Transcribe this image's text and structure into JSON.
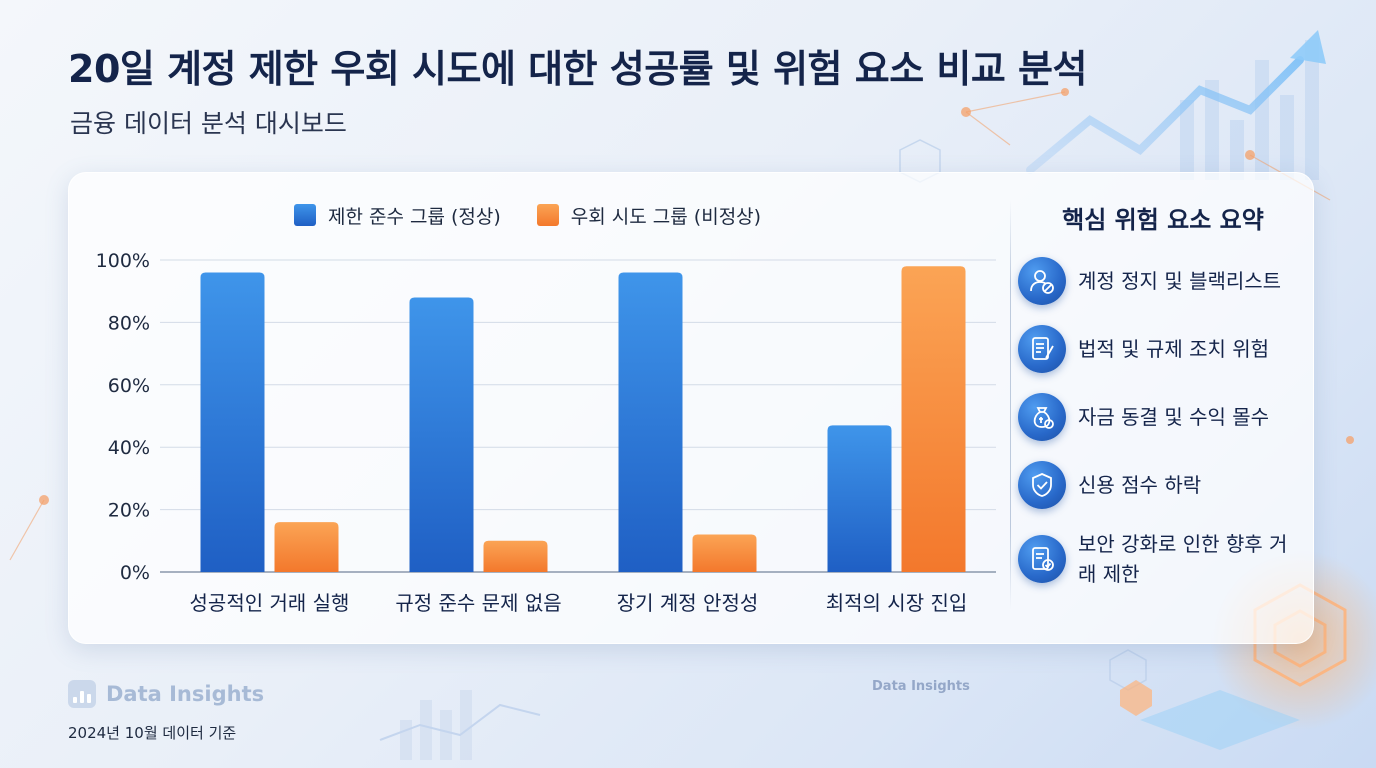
{
  "header": {
    "title": "20일 계정 제한 우회 시도에 대한 성공률 및 위험 요소 비교 분석",
    "subtitle": "금융 데이터 분석 대시보드"
  },
  "chart_data": {
    "type": "bar",
    "categories": [
      "성공적인 거래 실행",
      "규정 준수 문제 없음",
      "장기 계정 안정성",
      "최적의 시장 진입"
    ],
    "series": [
      {
        "name": "제한 준수 그룹 (정상)",
        "values": [
          96,
          88,
          96,
          47
        ],
        "color": "#2e7be0"
      },
      {
        "name": "우회 시도 그룹 (비정상)",
        "values": [
          16,
          10,
          12,
          98
        ],
        "color": "#f7923a"
      }
    ],
    "yticks": [
      "0%",
      "20%",
      "40%",
      "60%",
      "80%",
      "100%"
    ],
    "ylim": [
      0,
      100
    ],
    "grid": true,
    "legend_position": "top"
  },
  "risk_panel": {
    "title": "핵심 위험 요소 요약",
    "items": [
      {
        "label": "계정 정지 및 블랙리스트",
        "icon": "user-block-icon"
      },
      {
        "label": "법적 및 규제 조치 위험",
        "icon": "document-pen-icon"
      },
      {
        "label": "자금 동결 및 수익 몰수",
        "icon": "money-bag-icon"
      },
      {
        "label": "신용 점수 하락",
        "icon": "shield-check-icon"
      },
      {
        "label": "보안 강화로 인한 향후 거래 제한",
        "icon": "document-check-icon"
      }
    ]
  },
  "footer": {
    "brand": "Data Insights",
    "date": "2024년 10월 데이터 기준",
    "watermark": "Data Insights"
  }
}
